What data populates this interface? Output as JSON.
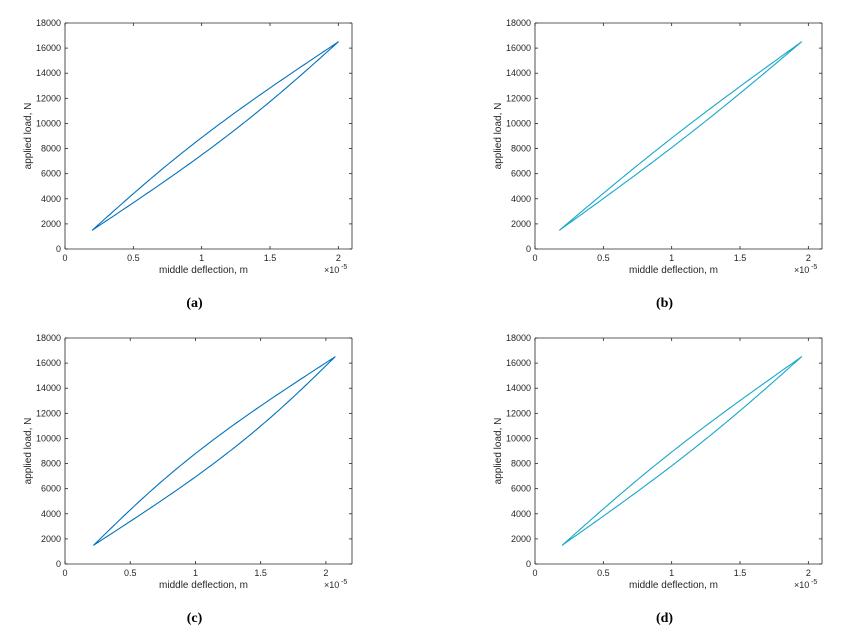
{
  "figure": {
    "panels": [
      {
        "caption": "(a)",
        "series_color": "#0072BD"
      },
      {
        "caption": "(b)",
        "series_color": "#17A8C8"
      },
      {
        "caption": "(c)",
        "series_color": "#0072BD"
      },
      {
        "caption": "(d)",
        "series_color": "#17A8C8"
      }
    ]
  },
  "chart_data": [
    {
      "type": "line",
      "xlabel": "middle deflection, m",
      "ylabel": "applied load, N",
      "x_exponent_label": "×10",
      "x_exponent_power": "-5",
      "xlim": [
        0,
        2.1
      ],
      "ylim": [
        0,
        18000
      ],
      "xticks": [
        "0",
        "0.5",
        "1",
        "1.5",
        "2"
      ],
      "yticks": [
        "0",
        "2000",
        "4000",
        "6000",
        "8000",
        "10000",
        "12000",
        "14000",
        "16000",
        "18000"
      ],
      "grid": false,
      "loop": {
        "x_min": 0.2,
        "y_min": 1500,
        "x_max": 2.0,
        "y_max": 16500,
        "half_width": 0.085
      }
    },
    {
      "type": "line",
      "xlabel": "middle deflection, m",
      "ylabel": "applied load, N",
      "x_exponent_label": "×10",
      "x_exponent_power": "-5",
      "xlim": [
        0,
        2.1
      ],
      "ylim": [
        0,
        18000
      ],
      "xticks": [
        "0",
        "0.5",
        "1",
        "1.5",
        "2"
      ],
      "yticks": [
        "0",
        "2000",
        "4000",
        "6000",
        "8000",
        "10000",
        "12000",
        "14000",
        "16000",
        "18000"
      ],
      "grid": false,
      "loop": {
        "x_min": 0.18,
        "y_min": 1500,
        "x_max": 1.95,
        "y_max": 16500,
        "half_width": 0.045
      }
    },
    {
      "type": "line",
      "xlabel": "middle deflection, m",
      "ylabel": "applied load, N",
      "x_exponent_label": "×10",
      "x_exponent_power": "-5",
      "xlim": [
        0,
        2.2
      ],
      "ylim": [
        0,
        18000
      ],
      "xticks": [
        "0",
        "0.5",
        "1",
        "1.5",
        "2"
      ],
      "yticks": [
        "0",
        "2000",
        "4000",
        "6000",
        "8000",
        "10000",
        "12000",
        "14000",
        "16000",
        "18000"
      ],
      "grid": false,
      "loop": {
        "x_min": 0.22,
        "y_min": 1500,
        "x_max": 2.07,
        "y_max": 16500,
        "half_width": 0.12
      }
    },
    {
      "type": "line",
      "xlabel": "middle deflection, m",
      "ylabel": "applied load, N",
      "x_exponent_label": "×10",
      "x_exponent_power": "-5",
      "xlim": [
        0,
        2.1
      ],
      "ylim": [
        0,
        18000
      ],
      "xticks": [
        "0",
        "0.5",
        "1",
        "1.5",
        "2"
      ],
      "yticks": [
        "0",
        "2000",
        "4000",
        "6000",
        "8000",
        "10000",
        "12000",
        "14000",
        "16000",
        "18000"
      ],
      "grid": false,
      "loop": {
        "x_min": 0.2,
        "y_min": 1500,
        "x_max": 1.95,
        "y_max": 16500,
        "half_width": 0.065
      }
    }
  ]
}
